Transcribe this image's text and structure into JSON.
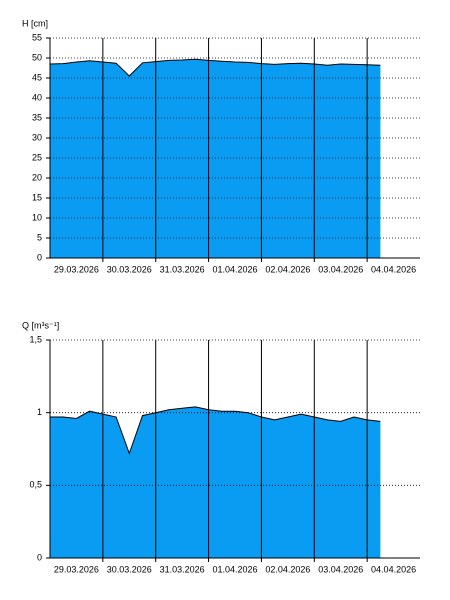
{
  "chart_data": [
    {
      "type": "area",
      "ylabel": "H [cm]",
      "color": "#0a9cf2",
      "line_color": "#000000",
      "grid": true,
      "xlim": [
        0,
        7
      ],
      "xticks": [
        {
          "value": 0,
          "label": "29.03.2026"
        },
        {
          "value": 1,
          "label": "30.03.2026"
        },
        {
          "value": 2,
          "label": "31.03.2026"
        },
        {
          "value": 3,
          "label": "01.04.2026"
        },
        {
          "value": 4,
          "label": "02.04.2026"
        },
        {
          "value": 5,
          "label": "03.04.2026"
        },
        {
          "value": 6,
          "label": "04.04.2026"
        }
      ],
      "ylim": [
        0,
        55
      ],
      "yticks": [
        0,
        5,
        10,
        15,
        20,
        25,
        30,
        35,
        40,
        45,
        50,
        55
      ],
      "x": [
        0,
        0.25,
        0.5,
        0.75,
        1,
        1.25,
        1.5,
        1.75,
        2,
        2.25,
        2.5,
        2.75,
        3,
        3.25,
        3.5,
        3.75,
        4,
        4.25,
        4.5,
        4.75,
        5,
        5.25,
        5.5,
        5.75,
        6,
        6.25
      ],
      "values": [
        48.5,
        48.6,
        49.0,
        49.3,
        49.0,
        48.7,
        45.5,
        48.8,
        49.1,
        49.4,
        49.5,
        49.7,
        49.4,
        49.2,
        49.0,
        48.9,
        48.6,
        48.4,
        48.6,
        48.7,
        48.5,
        48.2,
        48.5,
        48.4,
        48.3,
        48.2
      ]
    },
    {
      "type": "area",
      "ylabel": "Q [m³s⁻¹]",
      "color": "#0a9cf2",
      "line_color": "#000000",
      "grid": true,
      "xlim": [
        0,
        7
      ],
      "xticks": [
        {
          "value": 0,
          "label": "29.03.2026"
        },
        {
          "value": 1,
          "label": "30.03.2026"
        },
        {
          "value": 2,
          "label": "31.03.2026"
        },
        {
          "value": 3,
          "label": "01.04.2026"
        },
        {
          "value": 4,
          "label": "02.04.2026"
        },
        {
          "value": 5,
          "label": "03.04.2026"
        },
        {
          "value": 6,
          "label": "04.04.2026"
        }
      ],
      "ylim": [
        0,
        1.5
      ],
      "yticks": [
        0,
        {
          "value": 0.5,
          "label": "0,5"
        },
        1,
        {
          "value": 1.5,
          "label": "1,5"
        }
      ],
      "x": [
        0,
        0.25,
        0.5,
        0.75,
        1,
        1.25,
        1.5,
        1.75,
        2,
        2.25,
        2.5,
        2.75,
        3,
        3.25,
        3.5,
        3.75,
        4,
        4.25,
        4.5,
        4.75,
        5,
        5.25,
        5.5,
        5.75,
        6,
        6.25
      ],
      "values": [
        0.97,
        0.97,
        0.96,
        1.01,
        0.99,
        0.97,
        0.72,
        0.98,
        1.0,
        1.02,
        1.03,
        1.04,
        1.02,
        1.01,
        1.01,
        1.0,
        0.97,
        0.95,
        0.97,
        0.99,
        0.97,
        0.95,
        0.94,
        0.97,
        0.95,
        0.94
      ]
    }
  ]
}
